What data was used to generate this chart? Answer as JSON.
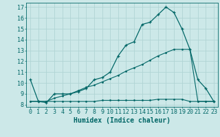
{
  "xlabel": "Humidex (Indice chaleur)",
  "xlim": [
    -0.5,
    23.5
  ],
  "ylim": [
    7.8,
    17.4
  ],
  "yticks": [
    8,
    9,
    10,
    11,
    12,
    13,
    14,
    15,
    16,
    17
  ],
  "xticks": [
    0,
    1,
    2,
    3,
    4,
    5,
    6,
    7,
    8,
    9,
    10,
    11,
    12,
    13,
    14,
    15,
    16,
    17,
    18,
    19,
    20,
    21,
    22,
    23
  ],
  "bg_color": "#cce8e8",
  "grid_color": "#b0d4d4",
  "line_color": "#006666",
  "line1_x": [
    0,
    1,
    2,
    3,
    4,
    5,
    6,
    7,
    8,
    9,
    10,
    11,
    12,
    13,
    14,
    15,
    16,
    17,
    18,
    19,
    20,
    21,
    22,
    23
  ],
  "line1_y": [
    10.3,
    8.3,
    8.2,
    9.0,
    9.0,
    9.0,
    9.2,
    9.5,
    10.3,
    10.5,
    11.0,
    12.5,
    13.5,
    13.8,
    15.4,
    15.6,
    16.3,
    17.0,
    16.5,
    15.0,
    13.1,
    10.3,
    9.5,
    8.3
  ],
  "line2_x": [
    0,
    1,
    2,
    3,
    4,
    5,
    6,
    7,
    8,
    9,
    10,
    11,
    12,
    13,
    14,
    15,
    16,
    17,
    18,
    19,
    20,
    21,
    22,
    23
  ],
  "line2_y": [
    8.3,
    8.3,
    8.3,
    8.3,
    8.3,
    8.3,
    8.3,
    8.3,
    8.3,
    8.4,
    8.4,
    8.4,
    8.4,
    8.4,
    8.4,
    8.4,
    8.5,
    8.5,
    8.5,
    8.5,
    8.3,
    8.3,
    8.3,
    8.3
  ],
  "line3_x": [
    0,
    1,
    2,
    3,
    4,
    5,
    6,
    7,
    8,
    9,
    10,
    11,
    12,
    13,
    14,
    15,
    16,
    17,
    18,
    19,
    20,
    21,
    22,
    23
  ],
  "line3_y": [
    8.3,
    8.3,
    8.3,
    8.6,
    8.8,
    9.0,
    9.3,
    9.6,
    9.8,
    10.1,
    10.4,
    10.7,
    11.1,
    11.4,
    11.7,
    12.1,
    12.5,
    12.8,
    13.1,
    13.1,
    13.1,
    8.3,
    8.3,
    8.3
  ],
  "tick_fontsize": 6,
  "label_fontsize": 7
}
